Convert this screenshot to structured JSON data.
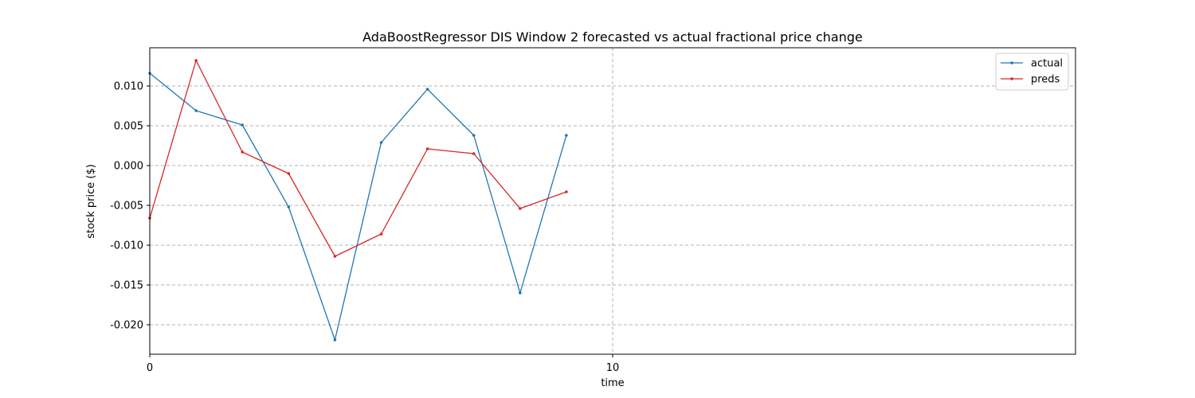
{
  "chart_data": {
    "type": "line",
    "title": "AdaBoostRegressor DIS Window 2 forecasted vs actual fractional price change",
    "xlabel": "time",
    "ylabel": "stock price ($)",
    "xlim": [
      0,
      20
    ],
    "ylim": [
      -0.0237,
      0.0148
    ],
    "x_ticks": [
      0,
      10
    ],
    "y_ticks": [
      -0.02,
      -0.015,
      -0.01,
      -0.005,
      0.0,
      0.005,
      0.01
    ],
    "grid": true,
    "legend_position": "top-right",
    "x": [
      0,
      1,
      2,
      3,
      4,
      5,
      6,
      7,
      8,
      9
    ],
    "series": [
      {
        "name": "actual",
        "color": "#1f77b4",
        "values": [
          0.0116,
          0.0069,
          0.0051,
          -0.0052,
          -0.0219,
          0.0029,
          0.0096,
          0.0038,
          -0.016,
          0.0038
        ]
      },
      {
        "name": "preds",
        "color": "#d62728",
        "values": [
          -0.0066,
          0.0132,
          0.0017,
          -0.001,
          -0.0114,
          -0.0086,
          0.0021,
          0.0015,
          -0.0054,
          -0.0033
        ]
      }
    ]
  }
}
